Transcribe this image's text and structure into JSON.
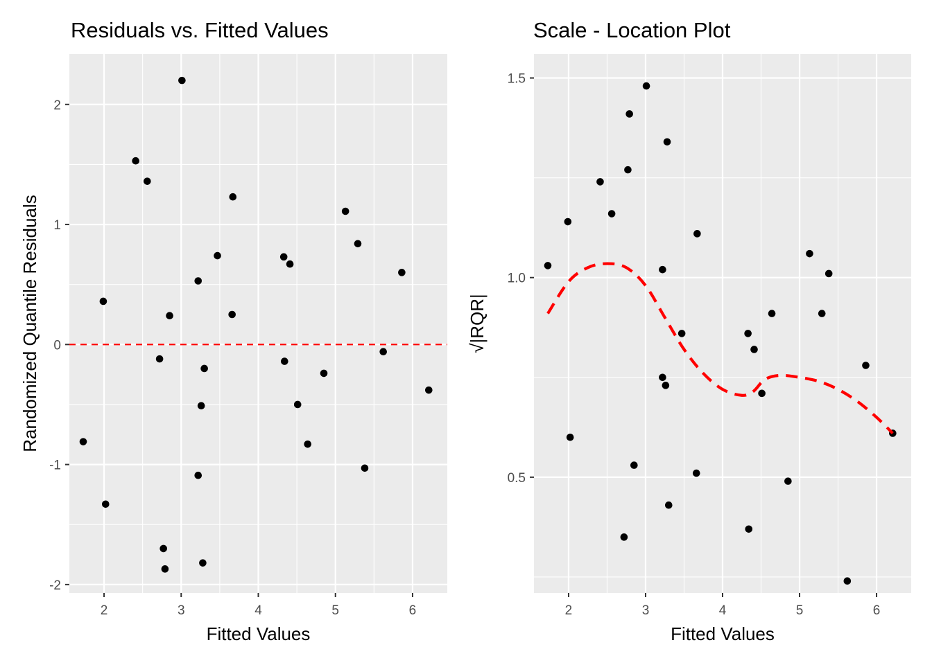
{
  "chart_data": [
    {
      "type": "scatter",
      "title": "Residuals vs. Fitted Values",
      "xlabel": "Fitted Values",
      "ylabel": "Randomized Quantile Residuals",
      "xlim": [
        1.55,
        6.45
      ],
      "ylim": [
        -2.07,
        2.42
      ],
      "x_ticks": [
        2,
        3,
        4,
        5,
        6
      ],
      "y_ticks": [
        -2,
        -1,
        0,
        1,
        2
      ],
      "grid": true,
      "reference_line": {
        "y": 0,
        "style": "dashed",
        "color": "#ff0000"
      },
      "points": [
        {
          "x": 1.73,
          "y": -0.81
        },
        {
          "x": 1.99,
          "y": 0.36
        },
        {
          "x": 2.02,
          "y": -1.33
        },
        {
          "x": 2.41,
          "y": 1.53
        },
        {
          "x": 2.56,
          "y": 1.36
        },
        {
          "x": 2.72,
          "y": -0.12
        },
        {
          "x": 2.77,
          "y": -1.7
        },
        {
          "x": 2.79,
          "y": -1.87
        },
        {
          "x": 2.85,
          "y": 0.24
        },
        {
          "x": 3.01,
          "y": 2.2
        },
        {
          "x": 3.22,
          "y": 0.53
        },
        {
          "x": 3.22,
          "y": -1.09
        },
        {
          "x": 3.26,
          "y": -0.51
        },
        {
          "x": 3.28,
          "y": -1.82
        },
        {
          "x": 3.3,
          "y": -0.2
        },
        {
          "x": 3.47,
          "y": 0.74
        },
        {
          "x": 3.66,
          "y": 0.25
        },
        {
          "x": 3.67,
          "y": 1.23
        },
        {
          "x": 4.33,
          "y": 0.73
        },
        {
          "x": 4.34,
          "y": -0.14
        },
        {
          "x": 4.41,
          "y": 0.67
        },
        {
          "x": 4.51,
          "y": -0.5
        },
        {
          "x": 4.64,
          "y": -0.83
        },
        {
          "x": 4.85,
          "y": -0.24
        },
        {
          "x": 5.13,
          "y": 1.11
        },
        {
          "x": 5.29,
          "y": 0.84
        },
        {
          "x": 5.38,
          "y": -1.03
        },
        {
          "x": 5.62,
          "y": -0.06
        },
        {
          "x": 5.86,
          "y": 0.6
        },
        {
          "x": 6.21,
          "y": -0.38
        }
      ]
    },
    {
      "type": "scatter",
      "title": "Scale - Location Plot",
      "xlabel": "Fitted Values",
      "ylabel": "√|RQR|",
      "xlim": [
        1.55,
        6.45
      ],
      "ylim": [
        0.21,
        1.56
      ],
      "x_ticks": [
        2,
        3,
        4,
        5,
        6
      ],
      "y_ticks": [
        0.5,
        1.0,
        1.5
      ],
      "y_tick_labels": [
        "0.5",
        "1.0",
        "1.5"
      ],
      "grid": true,
      "smooth_line": {
        "style": "dashed",
        "color": "#ff0000",
        "points": [
          {
            "x": 1.73,
            "y": 0.91
          },
          {
            "x": 2.0,
            "y": 0.99
          },
          {
            "x": 2.25,
            "y": 1.025
          },
          {
            "x": 2.5,
            "y": 1.035
          },
          {
            "x": 2.75,
            "y": 1.025
          },
          {
            "x": 3.0,
            "y": 0.98
          },
          {
            "x": 3.25,
            "y": 0.9
          },
          {
            "x": 3.5,
            "y": 0.82
          },
          {
            "x": 3.75,
            "y": 0.76
          },
          {
            "x": 4.0,
            "y": 0.72
          },
          {
            "x": 4.25,
            "y": 0.705
          },
          {
            "x": 4.4,
            "y": 0.715
          },
          {
            "x": 4.55,
            "y": 0.745
          },
          {
            "x": 4.75,
            "y": 0.755
          },
          {
            "x": 5.0,
            "y": 0.75
          },
          {
            "x": 5.25,
            "y": 0.74
          },
          {
            "x": 5.5,
            "y": 0.72
          },
          {
            "x": 5.75,
            "y": 0.69
          },
          {
            "x": 6.0,
            "y": 0.65
          },
          {
            "x": 6.21,
            "y": 0.61
          }
        ]
      },
      "points": [
        {
          "x": 1.73,
          "y": 1.03
        },
        {
          "x": 1.99,
          "y": 1.14
        },
        {
          "x": 2.02,
          "y": 0.6
        },
        {
          "x": 2.41,
          "y": 1.24
        },
        {
          "x": 2.56,
          "y": 1.16
        },
        {
          "x": 2.72,
          "y": 0.35
        },
        {
          "x": 2.77,
          "y": 1.27
        },
        {
          "x": 2.79,
          "y": 1.41
        },
        {
          "x": 2.85,
          "y": 0.53
        },
        {
          "x": 3.01,
          "y": 1.48
        },
        {
          "x": 3.22,
          "y": 0.75
        },
        {
          "x": 3.22,
          "y": 1.02
        },
        {
          "x": 3.26,
          "y": 0.73
        },
        {
          "x": 3.28,
          "y": 1.34
        },
        {
          "x": 3.3,
          "y": 0.43
        },
        {
          "x": 3.47,
          "y": 0.86
        },
        {
          "x": 3.66,
          "y": 0.51
        },
        {
          "x": 3.67,
          "y": 1.11
        },
        {
          "x": 4.33,
          "y": 0.86
        },
        {
          "x": 4.34,
          "y": 0.37
        },
        {
          "x": 4.41,
          "y": 0.82
        },
        {
          "x": 4.51,
          "y": 0.71
        },
        {
          "x": 4.64,
          "y": 0.91
        },
        {
          "x": 4.85,
          "y": 0.49
        },
        {
          "x": 5.13,
          "y": 1.06
        },
        {
          "x": 5.29,
          "y": 0.91
        },
        {
          "x": 5.38,
          "y": 1.01
        },
        {
          "x": 5.62,
          "y": 0.24
        },
        {
          "x": 5.86,
          "y": 0.78
        },
        {
          "x": 6.21,
          "y": 0.61
        }
      ]
    }
  ]
}
